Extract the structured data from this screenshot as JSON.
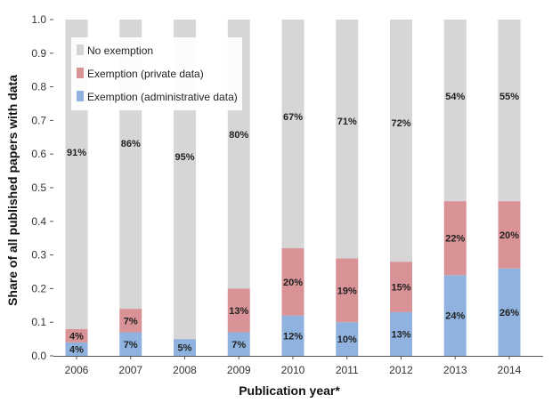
{
  "chart_data": {
    "type": "bar",
    "stacked": true,
    "title": "",
    "xlabel": "Publication year*",
    "ylabel": "Share of all published papers with data",
    "ylim": [
      0,
      1.0
    ],
    "yticks": [
      "0.0",
      "0.1",
      "0.2",
      "0.3",
      "0.4",
      "0.5",
      "0.6",
      "0.7",
      "0.8",
      "0.9",
      "1.0"
    ],
    "grid": false,
    "legend_position": "top-left",
    "categories": [
      "2006",
      "2007",
      "2008",
      "2009",
      "2010",
      "2011",
      "2012",
      "2013",
      "2014"
    ],
    "series": [
      {
        "name": "Exemption (administrative data)",
        "color": "#8fb3de",
        "values": [
          0.04,
          0.07,
          0.05,
          0.07,
          0.12,
          0.1,
          0.13,
          0.24,
          0.26
        ],
        "labels": [
          "4%",
          "7%",
          "5%",
          "7%",
          "12%",
          "10%",
          "13%",
          "24%",
          "26%"
        ]
      },
      {
        "name": "Exemption (private data)",
        "color": "#d99396",
        "values": [
          0.04,
          0.07,
          0.0,
          0.13,
          0.2,
          0.19,
          0.15,
          0.22,
          0.2
        ],
        "labels": [
          "4%",
          "7%",
          "",
          "13%",
          "20%",
          "19%",
          "15%",
          "22%",
          "20%"
        ]
      },
      {
        "name": "No exemption",
        "color": "#d6d6d6",
        "values": [
          0.91,
          0.86,
          0.95,
          0.8,
          0.67,
          0.71,
          0.72,
          0.54,
          0.55
        ],
        "labels": [
          "91%",
          "86%",
          "95%",
          "80%",
          "67%",
          "71%",
          "72%",
          "54%",
          "55%"
        ]
      }
    ],
    "legend_order": [
      "No exemption",
      "Exemption (private data)",
      "Exemption (administrative data)"
    ]
  }
}
